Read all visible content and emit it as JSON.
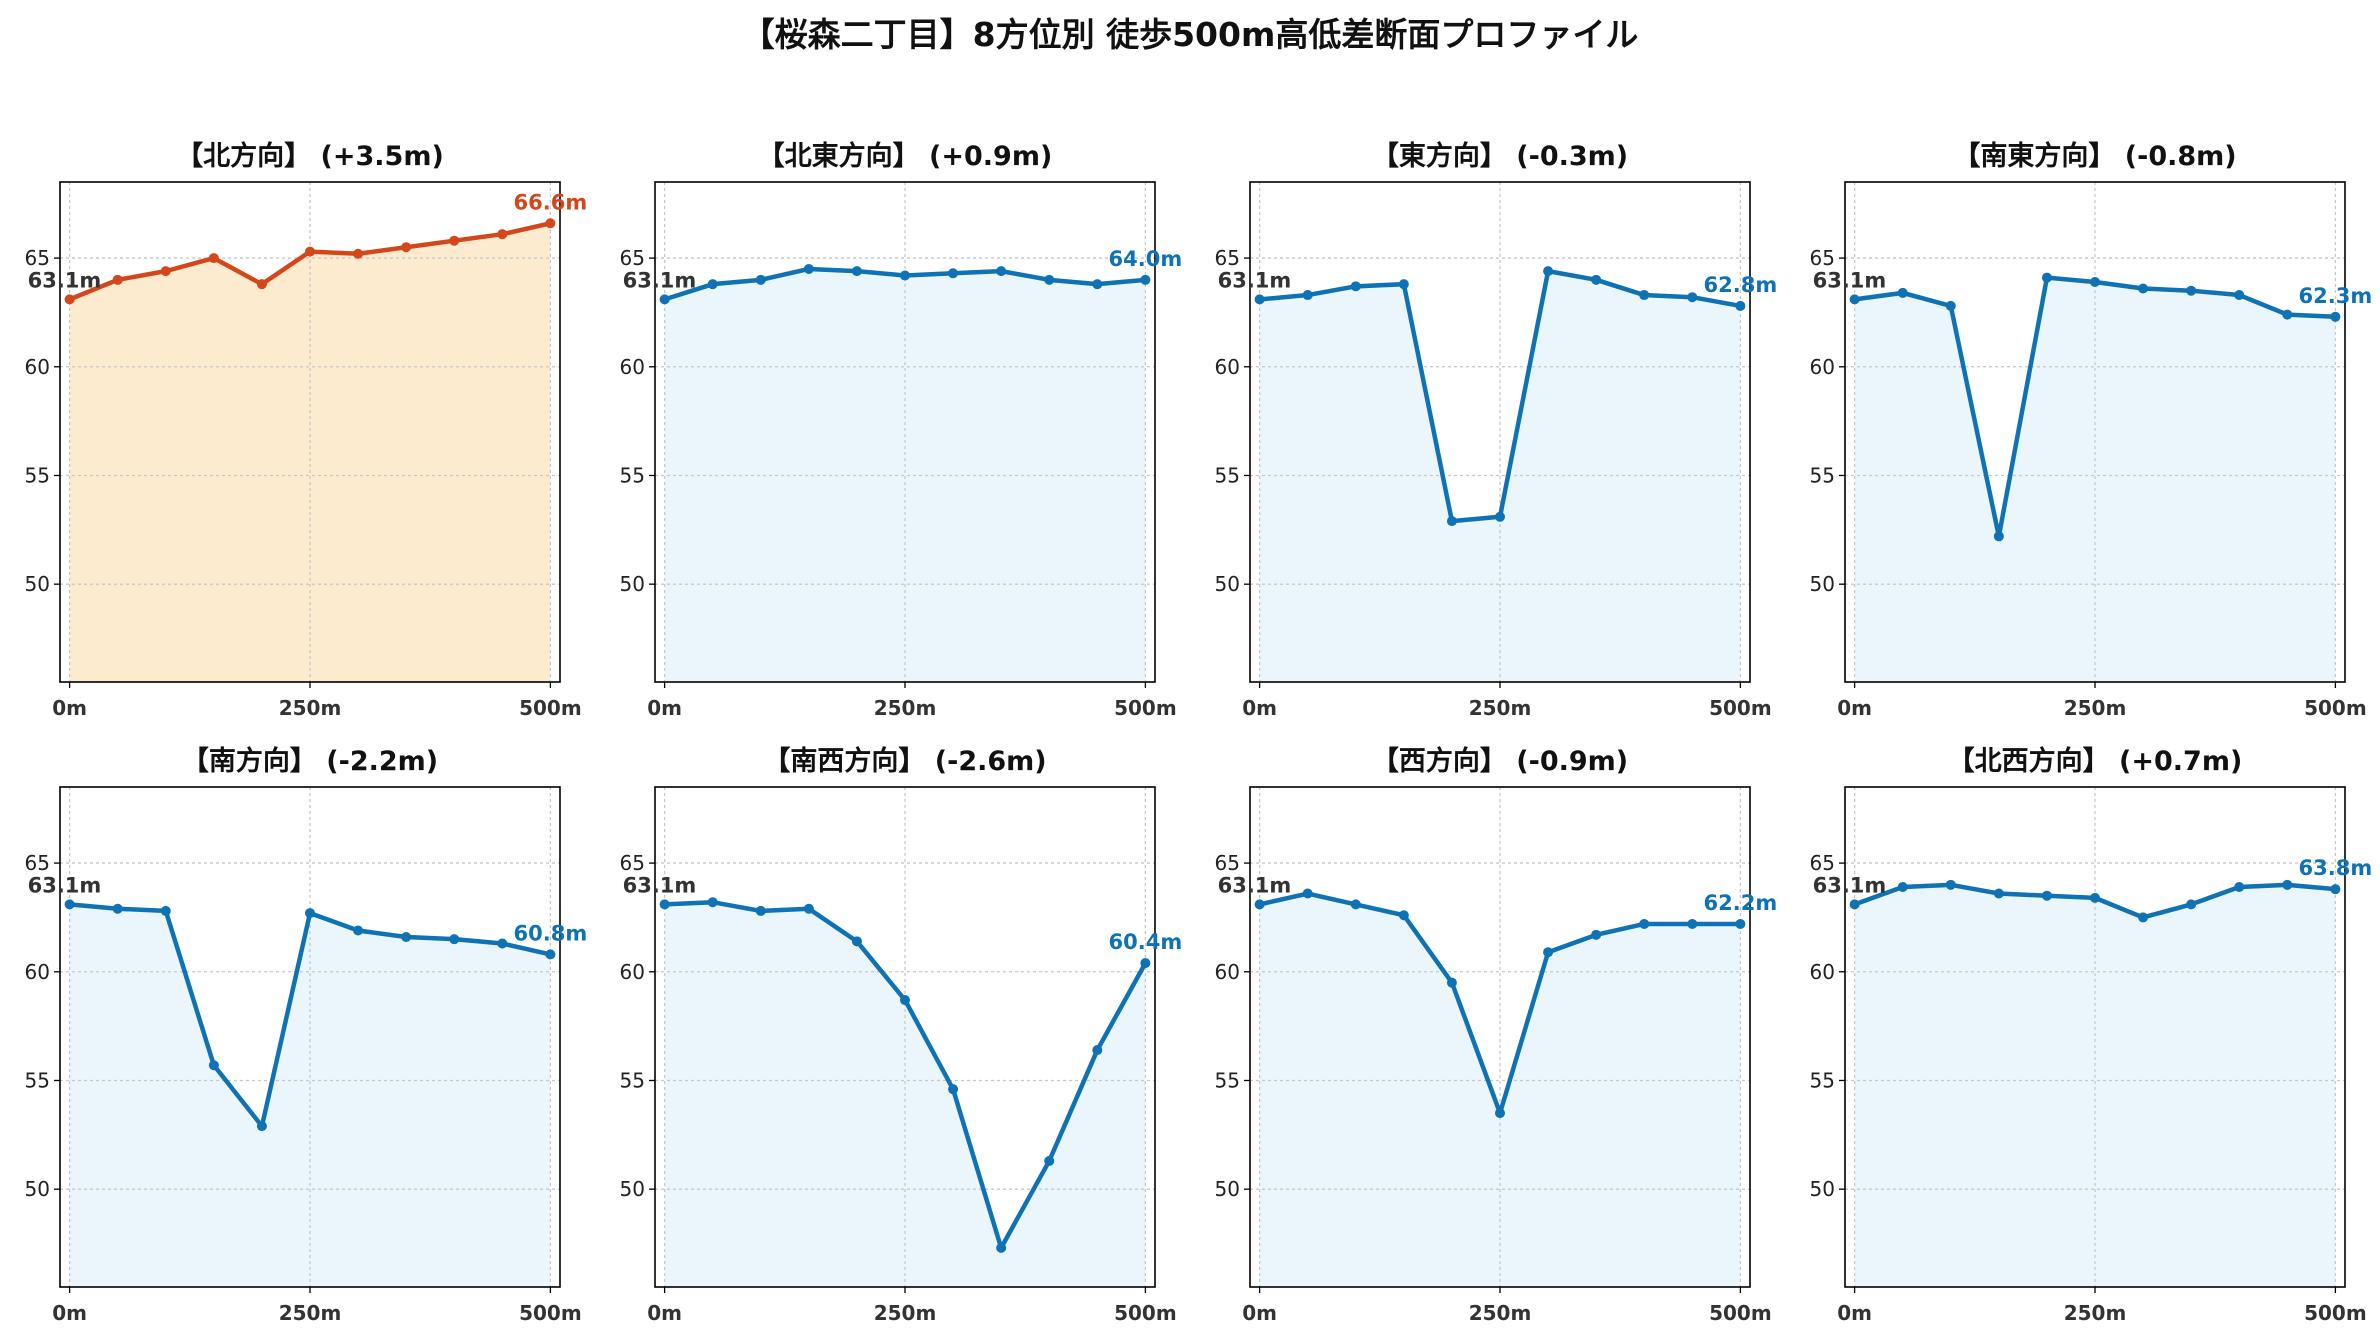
{
  "title": "【桜森二丁目】8方位別 徒歩500m高低差断面プロファイル",
  "colors": {
    "rise": "#d4471a",
    "rise_fill": "#fdebd0",
    "default": "#0f72b5",
    "default_fill": "#eaf6fb",
    "grid": "#c8c8c8",
    "start_label": "#333333"
  },
  "chart_data": [
    {
      "type": "line",
      "title": "【北方向】 (+3.5m)",
      "x": [
        0,
        50,
        100,
        150,
        200,
        250,
        300,
        350,
        400,
        450,
        500
      ],
      "values": [
        63.1,
        64.0,
        64.4,
        65.0,
        63.8,
        65.3,
        65.2,
        65.5,
        65.8,
        66.1,
        66.6
      ],
      "start_label": "63.1m",
      "end_label": "66.6m",
      "highlight": true,
      "xticks": [
        "0m",
        "250m",
        "500m"
      ],
      "yticks": [
        50,
        55,
        60,
        65
      ],
      "ylim": [
        45.5,
        68.5
      ],
      "xlim": [
        -10,
        510
      ],
      "grid": true
    },
    {
      "type": "line",
      "title": "【北東方向】 (+0.9m)",
      "x": [
        0,
        50,
        100,
        150,
        200,
        250,
        300,
        350,
        400,
        450,
        500
      ],
      "values": [
        63.1,
        63.8,
        64.0,
        64.5,
        64.4,
        64.2,
        64.3,
        64.4,
        64.0,
        63.8,
        64.0
      ],
      "start_label": "63.1m",
      "end_label": "64.0m",
      "highlight": false,
      "xticks": [
        "0m",
        "250m",
        "500m"
      ],
      "yticks": [
        50,
        55,
        60,
        65
      ],
      "ylim": [
        45.5,
        68.5
      ],
      "xlim": [
        -10,
        510
      ],
      "grid": true
    },
    {
      "type": "line",
      "title": "【東方向】 (-0.3m)",
      "x": [
        0,
        50,
        100,
        150,
        200,
        250,
        300,
        350,
        400,
        450,
        500
      ],
      "values": [
        63.1,
        63.3,
        63.7,
        63.8,
        52.9,
        53.1,
        64.4,
        64.0,
        63.3,
        63.2,
        62.8
      ],
      "start_label": "63.1m",
      "end_label": "62.8m",
      "highlight": false,
      "xticks": [
        "0m",
        "250m",
        "500m"
      ],
      "yticks": [
        50,
        55,
        60,
        65
      ],
      "ylim": [
        45.5,
        68.5
      ],
      "xlim": [
        -10,
        510
      ],
      "grid": true
    },
    {
      "type": "line",
      "title": "【南東方向】 (-0.8m)",
      "x": [
        0,
        50,
        100,
        150,
        200,
        250,
        300,
        350,
        400,
        450,
        500
      ],
      "values": [
        63.1,
        63.4,
        62.8,
        52.2,
        64.1,
        63.9,
        63.6,
        63.5,
        63.3,
        62.4,
        62.3
      ],
      "start_label": "63.1m",
      "end_label": "62.3m",
      "highlight": false,
      "xticks": [
        "0m",
        "250m",
        "500m"
      ],
      "yticks": [
        50,
        55,
        60,
        65
      ],
      "ylim": [
        45.5,
        68.5
      ],
      "xlim": [
        -10,
        510
      ],
      "grid": true
    },
    {
      "type": "line",
      "title": "【南方向】 (-2.2m)",
      "x": [
        0,
        50,
        100,
        150,
        200,
        250,
        300,
        350,
        400,
        450,
        500
      ],
      "values": [
        63.1,
        62.9,
        62.8,
        55.7,
        52.9,
        62.7,
        61.9,
        61.6,
        61.5,
        61.3,
        60.8
      ],
      "start_label": "63.1m",
      "end_label": "60.8m",
      "highlight": false,
      "xticks": [
        "0m",
        "250m",
        "500m"
      ],
      "yticks": [
        50,
        55,
        60,
        65
      ],
      "ylim": [
        45.5,
        68.5
      ],
      "xlim": [
        -10,
        510
      ],
      "grid": true
    },
    {
      "type": "line",
      "title": "【南西方向】 (-2.6m)",
      "x": [
        0,
        50,
        100,
        150,
        200,
        250,
        300,
        350,
        400,
        450,
        500
      ],
      "values": [
        63.1,
        63.2,
        62.8,
        62.9,
        61.4,
        58.7,
        54.6,
        47.3,
        51.3,
        56.4,
        60.4
      ],
      "start_label": "63.1m",
      "end_label": "60.4m",
      "highlight": false,
      "xticks": [
        "0m",
        "250m",
        "500m"
      ],
      "yticks": [
        50,
        55,
        60,
        65
      ],
      "ylim": [
        45.5,
        68.5
      ],
      "xlim": [
        -10,
        510
      ],
      "grid": true
    },
    {
      "type": "line",
      "title": "【西方向】 (-0.9m)",
      "x": [
        0,
        50,
        100,
        150,
        200,
        250,
        300,
        350,
        400,
        450,
        500
      ],
      "values": [
        63.1,
        63.6,
        63.1,
        62.6,
        59.5,
        53.5,
        60.9,
        61.7,
        62.2,
        62.2,
        62.2
      ],
      "start_label": "63.1m",
      "end_label": "62.2m",
      "highlight": false,
      "xticks": [
        "0m",
        "250m",
        "500m"
      ],
      "yticks": [
        50,
        55,
        60,
        65
      ],
      "ylim": [
        45.5,
        68.5
      ],
      "xlim": [
        -10,
        510
      ],
      "grid": true
    },
    {
      "type": "line",
      "title": "【北西方向】 (+0.7m)",
      "x": [
        0,
        50,
        100,
        150,
        200,
        250,
        300,
        350,
        400,
        450,
        500
      ],
      "values": [
        63.1,
        63.9,
        64.0,
        63.6,
        63.5,
        63.4,
        62.5,
        63.1,
        63.9,
        64.0,
        63.8
      ],
      "start_label": "63.1m",
      "end_label": "63.8m",
      "highlight": false,
      "xticks": [
        "0m",
        "250m",
        "500m"
      ],
      "yticks": [
        50,
        55,
        60,
        65
      ],
      "ylim": [
        45.5,
        68.5
      ],
      "xlim": [
        -10,
        510
      ],
      "grid": true
    }
  ]
}
